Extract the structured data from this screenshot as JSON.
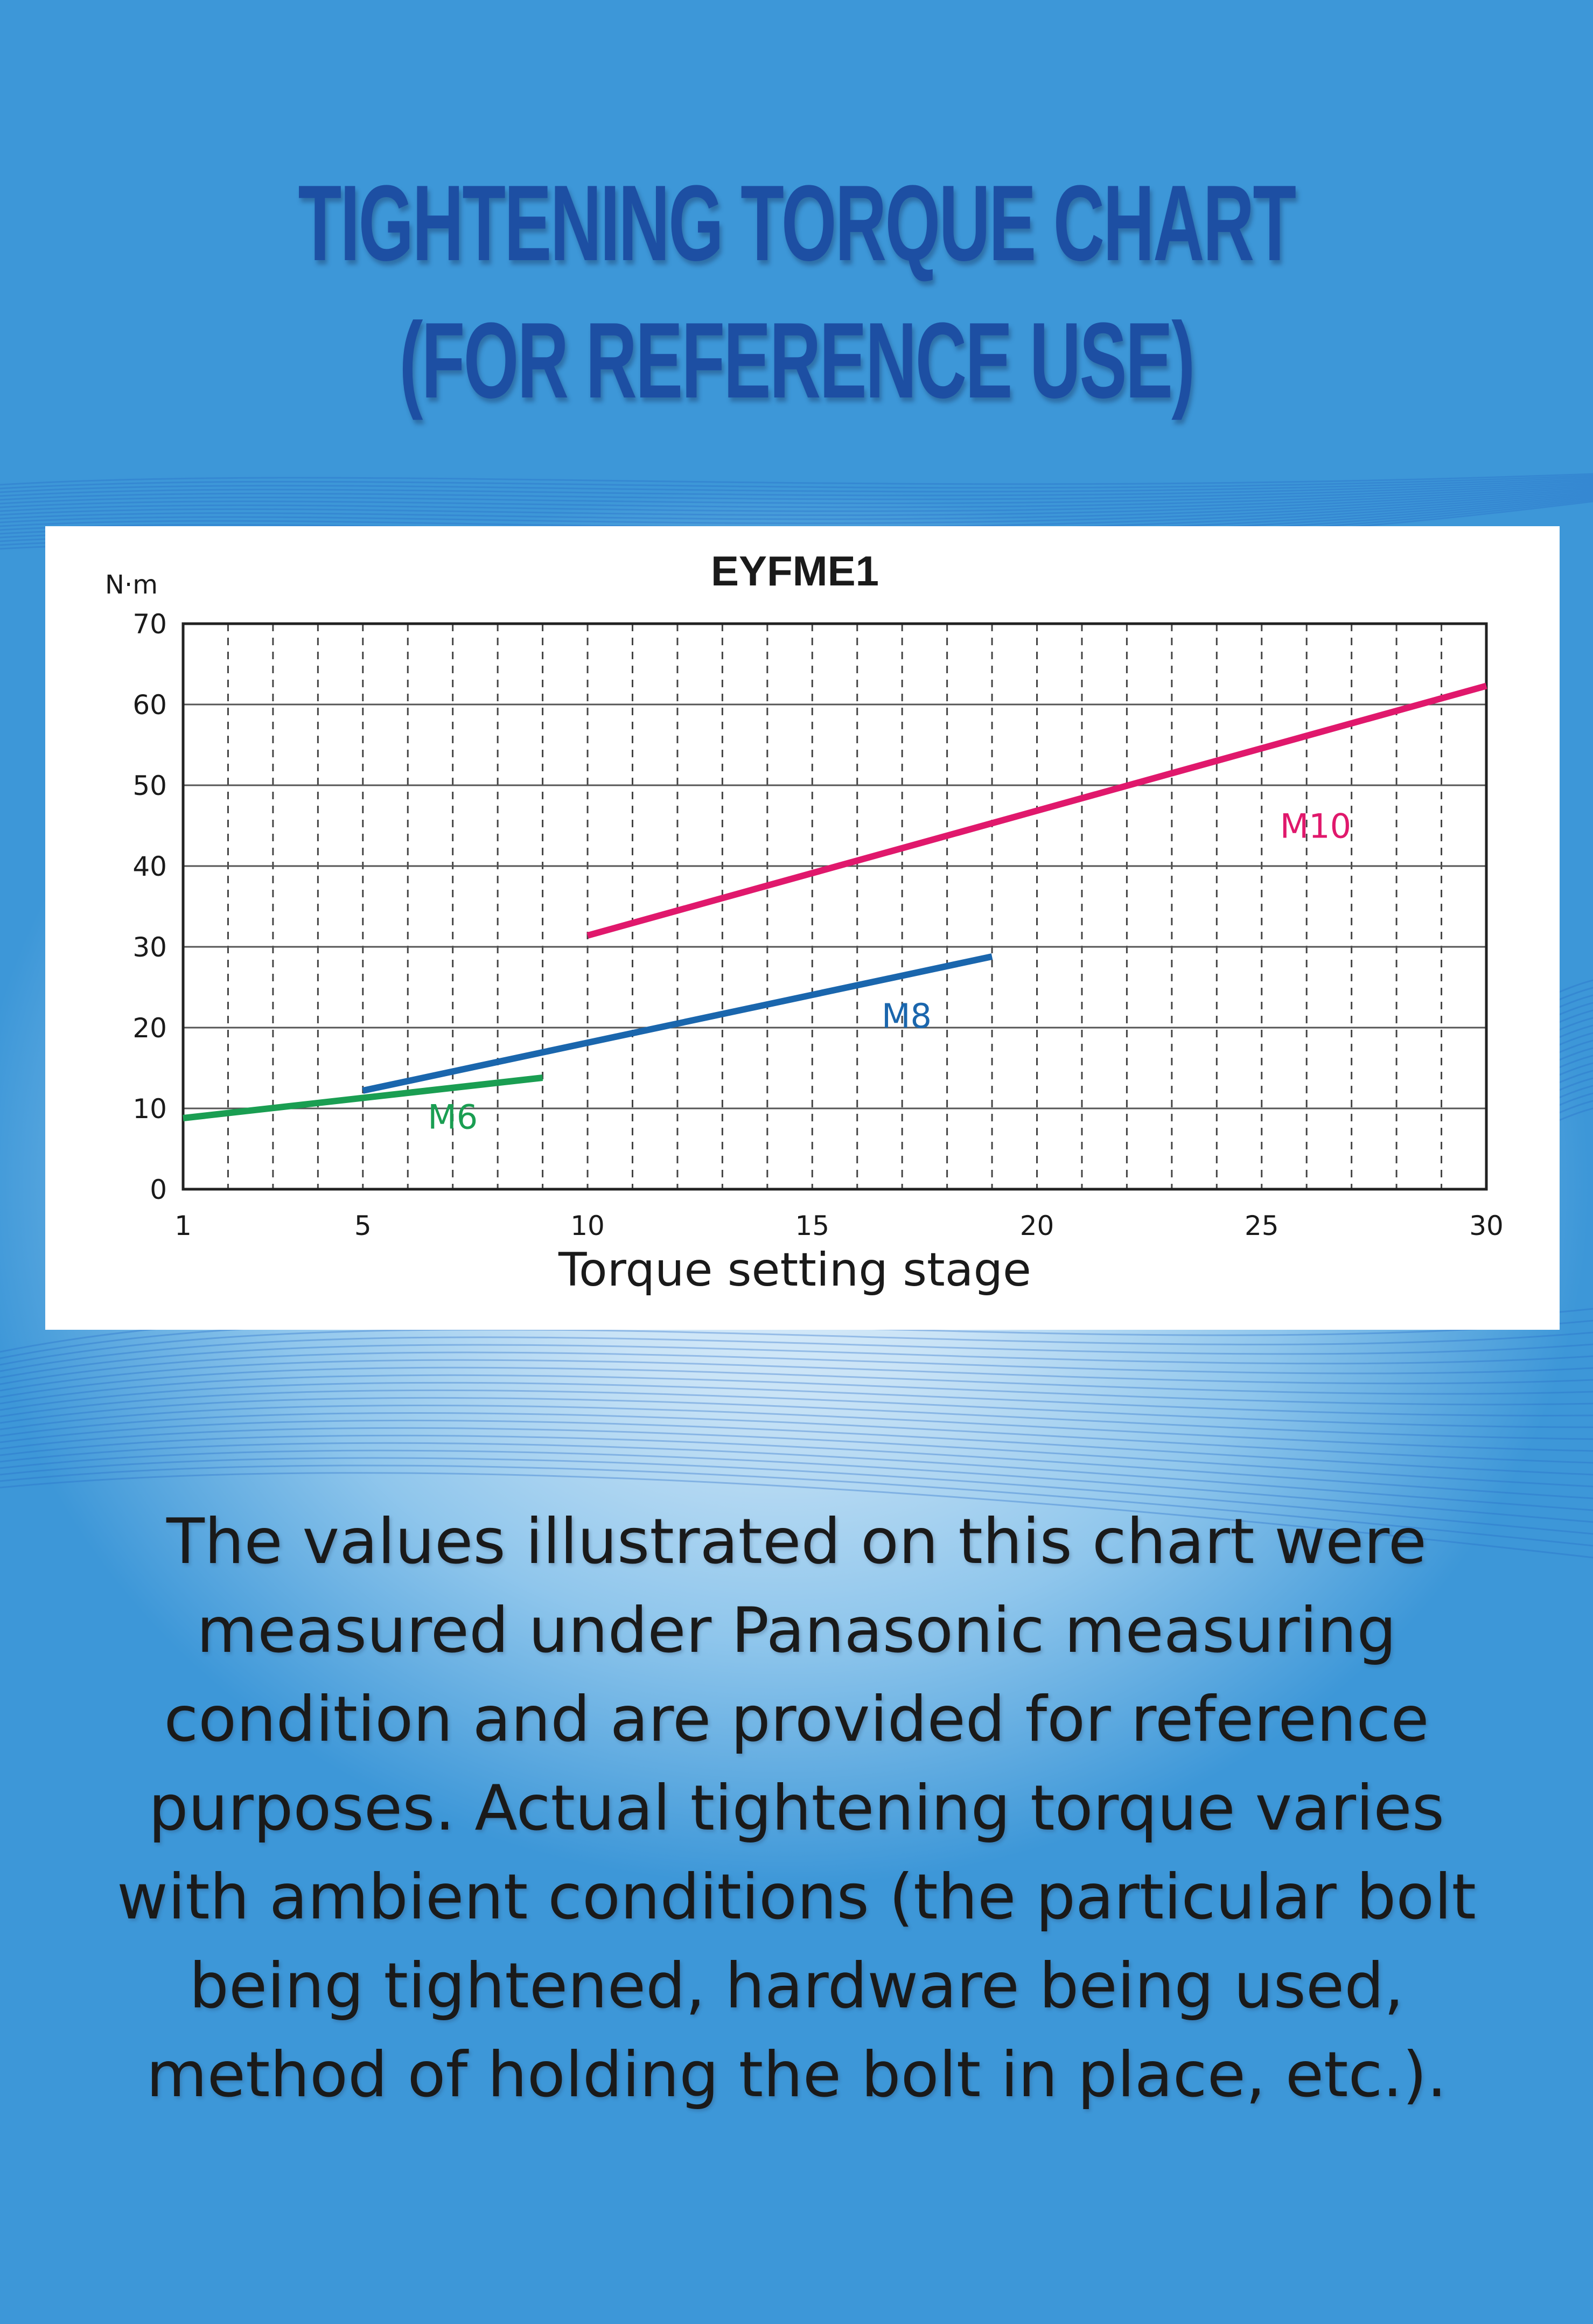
{
  "title_lines": [
    "TIGHTENING TORQUE CHART",
    "(FOR REFERENCE USE)"
  ],
  "description": "The values illustrated on this chart were measured under Panasonic measuring condition and are provided for reference purposes. Actual tightening torque varies with ambient conditions (the particular bolt being tightened, hardware being used, method of holding the bolt in place, etc.).",
  "colors": {
    "title": "#1d4fa3",
    "m6": "#1a9e52",
    "m8": "#1a66ad",
    "m10": "#e0186c",
    "grid": "#444444"
  },
  "chart_data": {
    "type": "line",
    "title": "EYFME1",
    "xlabel": "Torque setting stage",
    "ylabel": "N·m",
    "xlim": [
      1,
      30
    ],
    "ylim": [
      0,
      70
    ],
    "xticks": [
      1,
      5,
      10,
      15,
      20,
      25,
      30
    ],
    "yticks": [
      0,
      10,
      20,
      30,
      40,
      50,
      60,
      70
    ],
    "grid": true,
    "series": [
      {
        "name": "M6",
        "color": "#1a9e52",
        "x": [
          1,
          9
        ],
        "y": [
          8.8,
          13.8
        ]
      },
      {
        "name": "M8",
        "color": "#1a66ad",
        "x": [
          5,
          19
        ],
        "y": [
          12.2,
          28.8
        ]
      },
      {
        "name": "M10",
        "color": "#e0186c",
        "x": [
          10,
          30
        ],
        "y": [
          31.4,
          62.3
        ]
      }
    ]
  }
}
